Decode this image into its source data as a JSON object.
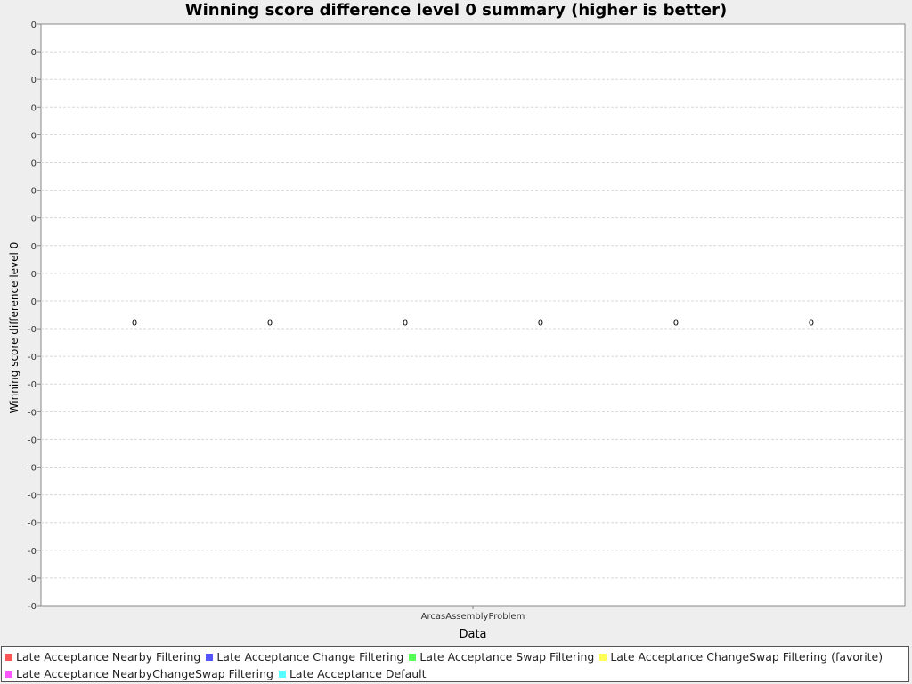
{
  "chart_data": {
    "type": "bar",
    "title": "Winning score difference level 0 summary (higher is better)",
    "xlabel": "Data",
    "ylabel": "Winning score difference level 0",
    "categories": [
      "ArcasAssemblyProblem"
    ],
    "series": [
      {
        "name": "Late Acceptance Nearby Filtering",
        "values": [
          0
        ],
        "label": "0",
        "color": "#ff5555"
      },
      {
        "name": "Late Acceptance Change Filtering",
        "values": [
          0
        ],
        "label": "0",
        "color": "#5555ff"
      },
      {
        "name": "Late Acceptance Swap Filtering",
        "values": [
          0
        ],
        "label": "0",
        "color": "#55ff55"
      },
      {
        "name": "Late Acceptance ChangeSwap Filtering (favorite)",
        "values": [
          0
        ],
        "label": "0",
        "color": "#ffff55"
      },
      {
        "name": "Late Acceptance NearbyChangeSwap Filtering",
        "values": [
          0
        ],
        "label": "0",
        "color": "#ff55ff"
      },
      {
        "name": "Late Acceptance Default",
        "values": [
          0
        ],
        "label": "0",
        "color": "#55ffff"
      }
    ],
    "y_tick_labels": [
      "0",
      "0",
      "0",
      "0",
      "0",
      "0",
      "0",
      "0",
      "0",
      "0",
      "0",
      "-0",
      "-0",
      "-0",
      "-0",
      "-0",
      "-0",
      "-0",
      "-0",
      "-0",
      "-0",
      "-0"
    ],
    "grid": true,
    "legend_position": "bottom"
  }
}
